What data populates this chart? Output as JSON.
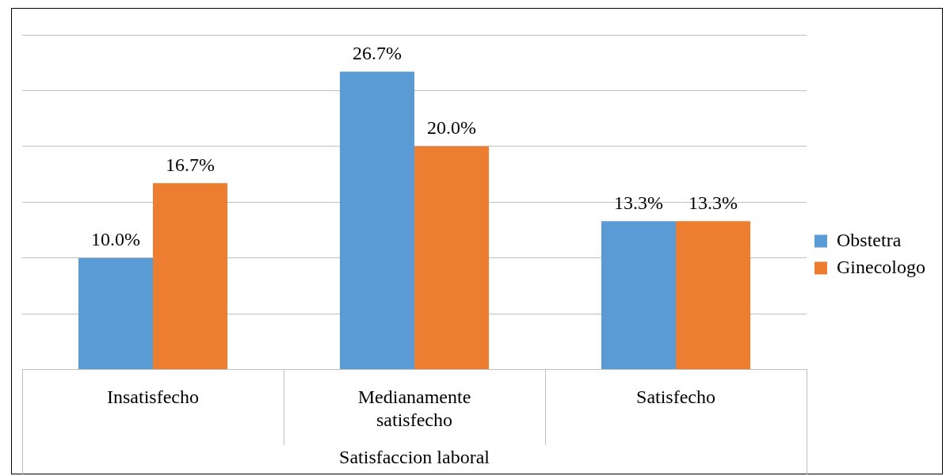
{
  "chart_data": {
    "type": "bar",
    "xlabel": "Satisfaccion laboral",
    "categories": [
      "Insatisfecho",
      "Medianamente satisfecho",
      "Satisfecho"
    ],
    "series": [
      {
        "name": "Obstetra",
        "color": "#5b9bd5",
        "values": [
          10.0,
          26.7,
          13.3
        ],
        "value_labels": [
          "10.0%",
          "26.7%",
          "13.3%"
        ]
      },
      {
        "name": "Ginecologo",
        "color": "#ed7d31",
        "values": [
          16.7,
          20.0,
          13.3
        ],
        "value_labels": [
          "16.7%",
          "20.0%",
          "13.3%"
        ]
      }
    ],
    "ylim": [
      0,
      30
    ],
    "yticks": [
      {
        "value": 0,
        "label": null
      },
      {
        "value": 5,
        "label": null
      },
      {
        "value": 10,
        "label": null
      },
      {
        "value": 15,
        "label": null
      },
      {
        "value": 20,
        "label": null
      },
      {
        "value": 25,
        "label": null
      },
      {
        "value": 30,
        "label": null
      }
    ],
    "tick_labels": "x",
    "grid": "y",
    "legend": "right"
  }
}
